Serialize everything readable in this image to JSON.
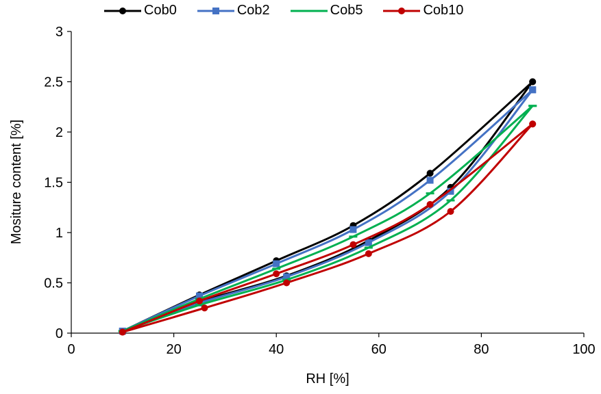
{
  "chart_data": {
    "type": "line",
    "title": "",
    "xlabel": "RH [%]",
    "ylabel": "Mositure content [%]",
    "xlim": [
      0,
      100
    ],
    "ylim": [
      0,
      3
    ],
    "xticks": [
      "0",
      "20",
      "40",
      "60",
      "80",
      "100"
    ],
    "yticks": [
      "0",
      "0.5",
      "1",
      "1.5",
      "2",
      "2.5",
      "3"
    ],
    "grid": false,
    "legend_position": "top",
    "series": [
      {
        "name": "Cob0",
        "color": "#000000",
        "marker": "circle",
        "adsorption": {
          "x": [
            10,
            25,
            42,
            58,
            74,
            90
          ],
          "y": [
            0.02,
            0.31,
            0.57,
            0.92,
            1.45,
            2.5
          ]
        },
        "desorption": {
          "x": [
            90,
            70,
            55,
            40,
            25,
            10
          ],
          "y": [
            2.5,
            1.59,
            1.07,
            0.72,
            0.38,
            0.02
          ]
        }
      },
      {
        "name": "Cob2",
        "color": "#4472C4",
        "marker": "square",
        "adsorption": {
          "x": [
            10,
            25,
            42,
            58,
            74,
            90
          ],
          "y": [
            0.02,
            0.3,
            0.56,
            0.9,
            1.41,
            2.42
          ]
        },
        "desorption": {
          "x": [
            90,
            70,
            55,
            40,
            25,
            10
          ],
          "y": [
            2.42,
            1.52,
            1.03,
            0.69,
            0.37,
            0.02
          ]
        }
      },
      {
        "name": "Cob5",
        "color": "#00B050",
        "marker": "dash",
        "adsorption": {
          "x": [
            10,
            25,
            42,
            58,
            74,
            90
          ],
          "y": [
            0.02,
            0.28,
            0.53,
            0.85,
            1.32,
            2.26
          ]
        },
        "desorption": {
          "x": [
            90,
            70,
            55,
            40,
            25,
            10
          ],
          "y": [
            2.26,
            1.39,
            0.96,
            0.64,
            0.34,
            0.02
          ]
        }
      },
      {
        "name": "Cob10",
        "color": "#C00000",
        "marker": "circle",
        "adsorption": {
          "x": [
            10,
            26,
            42,
            58,
            74,
            90
          ],
          "y": [
            0.01,
            0.25,
            0.5,
            0.79,
            1.21,
            2.08
          ]
        },
        "desorption": {
          "x": [
            90,
            70,
            55,
            40,
            25,
            10
          ],
          "y": [
            2.08,
            1.28,
            0.88,
            0.59,
            0.32,
            0.01
          ]
        }
      }
    ]
  }
}
